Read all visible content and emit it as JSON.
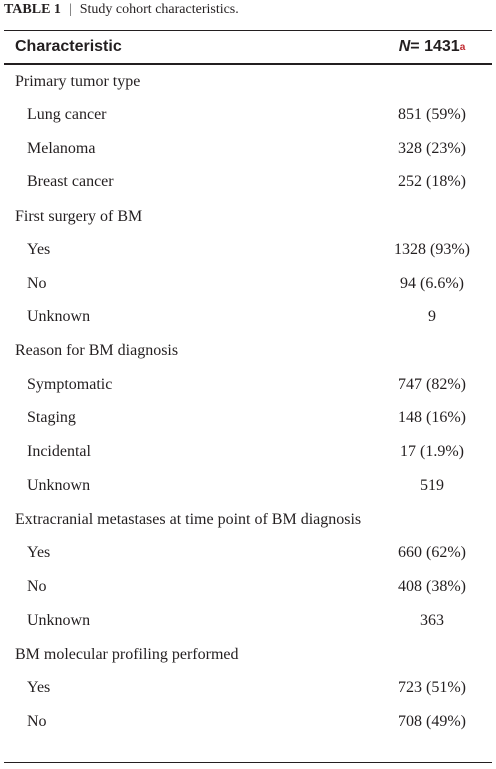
{
  "caption": {
    "label": "TABLE 1",
    "text": "Study cohort characteristics."
  },
  "header": {
    "column_1": "Characteristic",
    "column_2": {
      "n": "N",
      "value": "= 1431",
      "note": "a"
    }
  },
  "sections": [
    {
      "title": "Primary tumor type",
      "rows": [
        [
          "Lung cancer",
          "851 (59%)"
        ],
        [
          "Melanoma",
          "328 (23%)"
        ],
        [
          "Breast cancer",
          "252 (18%)"
        ]
      ]
    },
    {
      "title": "First surgery of BM",
      "rows": [
        [
          "Yes",
          "1328 (93%)"
        ],
        [
          "No",
          "94 (6.6%)"
        ],
        [
          "Unknown",
          "9"
        ]
      ]
    },
    {
      "title": "Reason for BM diagnosis",
      "rows": [
        [
          "Symptomatic",
          "747 (82%)"
        ],
        [
          "Staging",
          "148 (16%)"
        ],
        [
          "Incidental",
          "17 (1.9%)"
        ],
        [
          "Unknown",
          "519"
        ]
      ]
    },
    {
      "title": "Extracranial metastases at time point of BM diagnosis",
      "rows": [
        [
          "Yes",
          "660 (62%)"
        ],
        [
          "No",
          "408 (38%)"
        ],
        [
          "Unknown",
          "363"
        ]
      ]
    },
    {
      "title": "BM molecular profiling performed",
      "rows": [
        [
          "Yes",
          "723 (51%)"
        ],
        [
          "No",
          "708 (49%)"
        ]
      ]
    }
  ]
}
